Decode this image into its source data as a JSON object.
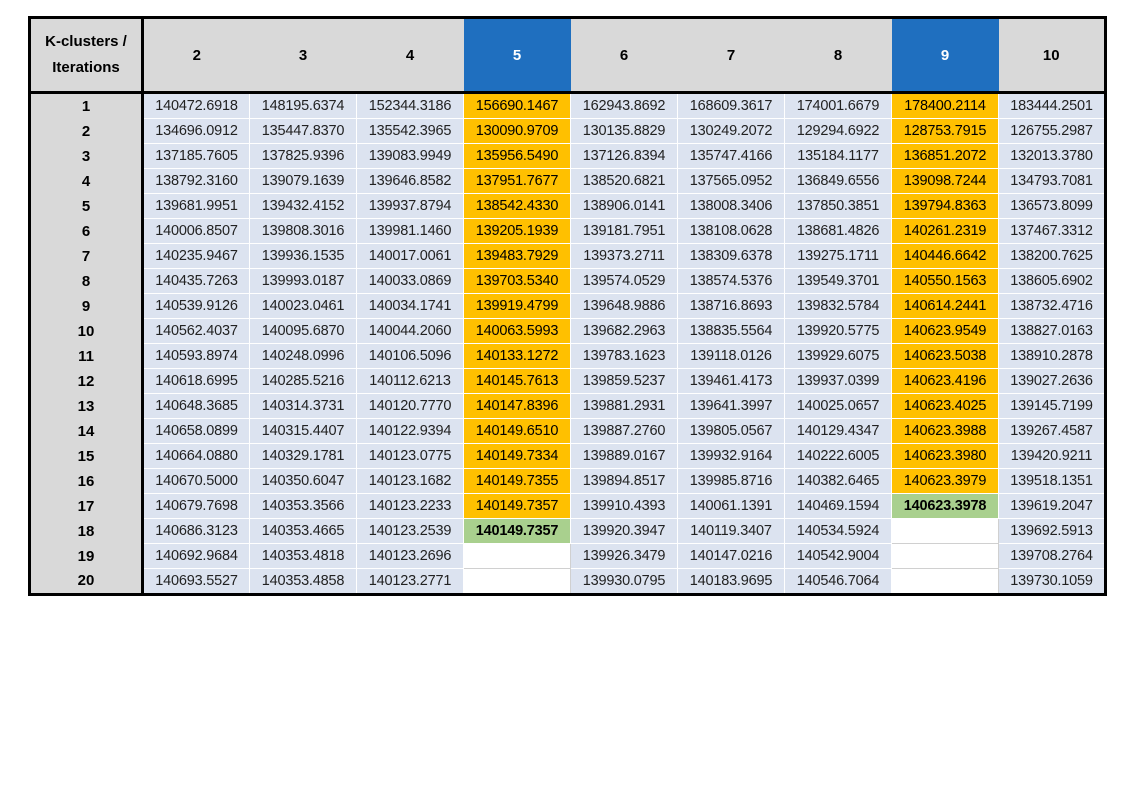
{
  "table": {
    "corner_label_line1": "K-clusters /",
    "corner_label_line2": "Iterations",
    "columns": [
      "2",
      "3",
      "4",
      "5",
      "6",
      "7",
      "8",
      "9",
      "10"
    ],
    "highlight_columns": [
      "5",
      "9"
    ],
    "colors": {
      "header_highlight": "#1f6fbf",
      "column_highlight": "#ffc000",
      "best_value": "#a9d08e",
      "cell": "#dce3f0",
      "header": "#d9d9d9"
    },
    "rows": [
      {
        "iter": "1",
        "values": [
          "140472.6918",
          "148195.6374",
          "152344.3186",
          "156690.1467",
          "162943.8692",
          "168609.3617",
          "174001.6679",
          "178400.2114",
          "183444.2501"
        ]
      },
      {
        "iter": "2",
        "values": [
          "134696.0912",
          "135447.8370",
          "135542.3965",
          "130090.9709",
          "130135.8829",
          "130249.2072",
          "129294.6922",
          "128753.7915",
          "126755.2987"
        ]
      },
      {
        "iter": "3",
        "values": [
          "137185.7605",
          "137825.9396",
          "139083.9949",
          "135956.5490",
          "137126.8394",
          "135747.4166",
          "135184.1177",
          "136851.2072",
          "132013.3780"
        ]
      },
      {
        "iter": "4",
        "values": [
          "138792.3160",
          "139079.1639",
          "139646.8582",
          "137951.7677",
          "138520.6821",
          "137565.0952",
          "136849.6556",
          "139098.7244",
          "134793.7081"
        ]
      },
      {
        "iter": "5",
        "values": [
          "139681.9951",
          "139432.4152",
          "139937.8794",
          "138542.4330",
          "138906.0141",
          "138008.3406",
          "137850.3851",
          "139794.8363",
          "136573.8099"
        ]
      },
      {
        "iter": "6",
        "values": [
          "140006.8507",
          "139808.3016",
          "139981.1460",
          "139205.1939",
          "139181.7951",
          "138108.0628",
          "138681.4826",
          "140261.2319",
          "137467.3312"
        ]
      },
      {
        "iter": "7",
        "values": [
          "140235.9467",
          "139936.1535",
          "140017.0061",
          "139483.7929",
          "139373.2711",
          "138309.6378",
          "139275.1711",
          "140446.6642",
          "138200.7625"
        ]
      },
      {
        "iter": "8",
        "values": [
          "140435.7263",
          "139993.0187",
          "140033.0869",
          "139703.5340",
          "139574.0529",
          "138574.5376",
          "139549.3701",
          "140550.1563",
          "138605.6902"
        ]
      },
      {
        "iter": "9",
        "values": [
          "140539.9126",
          "140023.0461",
          "140034.1741",
          "139919.4799",
          "139648.9886",
          "138716.8693",
          "139832.5784",
          "140614.2441",
          "138732.4716"
        ]
      },
      {
        "iter": "10",
        "values": [
          "140562.4037",
          "140095.6870",
          "140044.2060",
          "140063.5993",
          "139682.2963",
          "138835.5564",
          "139920.5775",
          "140623.9549",
          "138827.0163"
        ]
      },
      {
        "iter": "11",
        "values": [
          "140593.8974",
          "140248.0996",
          "140106.5096",
          "140133.1272",
          "139783.1623",
          "139118.0126",
          "139929.6075",
          "140623.5038",
          "138910.2878"
        ]
      },
      {
        "iter": "12",
        "values": [
          "140618.6995",
          "140285.5216",
          "140112.6213",
          "140145.7613",
          "139859.5237",
          "139461.4173",
          "139937.0399",
          "140623.4196",
          "139027.2636"
        ]
      },
      {
        "iter": "13",
        "values": [
          "140648.3685",
          "140314.3731",
          "140120.7770",
          "140147.8396",
          "139881.2931",
          "139641.3997",
          "140025.0657",
          "140623.4025",
          "139145.7199"
        ]
      },
      {
        "iter": "14",
        "values": [
          "140658.0899",
          "140315.4407",
          "140122.9394",
          "140149.6510",
          "139887.2760",
          "139805.0567",
          "140129.4347",
          "140623.3988",
          "139267.4587"
        ]
      },
      {
        "iter": "15",
        "values": [
          "140664.0880",
          "140329.1781",
          "140123.0775",
          "140149.7334",
          "139889.0167",
          "139932.9164",
          "140222.6005",
          "140623.3980",
          "139420.9211"
        ]
      },
      {
        "iter": "16",
        "values": [
          "140670.5000",
          "140350.6047",
          "140123.1682",
          "140149.7355",
          "139894.8517",
          "139985.8716",
          "140382.6465",
          "140623.3979",
          "139518.1351"
        ]
      },
      {
        "iter": "17",
        "values": [
          "140679.7698",
          "140353.3566",
          "140123.2233",
          "140149.7357",
          "139910.4393",
          "140061.1391",
          "140469.1594",
          "140623.3978",
          "139619.2047"
        ]
      },
      {
        "iter": "18",
        "values": [
          "140686.3123",
          "140353.4665",
          "140123.2539",
          "140149.7357",
          "139920.3947",
          "140119.3407",
          "140534.5924",
          "",
          "139692.5913"
        ]
      },
      {
        "iter": "19",
        "values": [
          "140692.9684",
          "140353.4818",
          "140123.2696",
          "",
          "139926.3479",
          "140147.0216",
          "140542.9004",
          "",
          "139708.2764"
        ]
      },
      {
        "iter": "20",
        "values": [
          "140693.5527",
          "140353.4858",
          "140123.2771",
          "",
          "139930.0795",
          "140183.9695",
          "140546.7064",
          "",
          "139730.1059"
        ]
      }
    ],
    "best_cells": [
      {
        "iter": "18",
        "column": "5"
      },
      {
        "iter": "17",
        "column": "9"
      }
    ]
  }
}
